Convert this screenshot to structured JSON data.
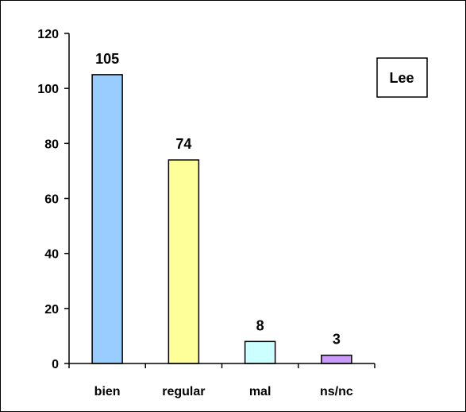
{
  "chart_data": {
    "type": "bar",
    "categories": [
      "bien",
      "regular",
      "mal",
      "ns/nc"
    ],
    "values": [
      105,
      74,
      8,
      3
    ],
    "data_labels": [
      "105",
      "74",
      "8",
      "3"
    ],
    "ylim": [
      0,
      120
    ],
    "yticks": [
      0,
      20,
      40,
      60,
      80,
      100,
      120
    ],
    "bar_colors": [
      "#99ccff",
      "#ffff99",
      "#ccffff",
      "#cc99ff"
    ],
    "legend": {
      "label": "Lee",
      "placement": "top-right"
    },
    "title": "",
    "xlabel": "",
    "ylabel": "",
    "grid": false
  }
}
